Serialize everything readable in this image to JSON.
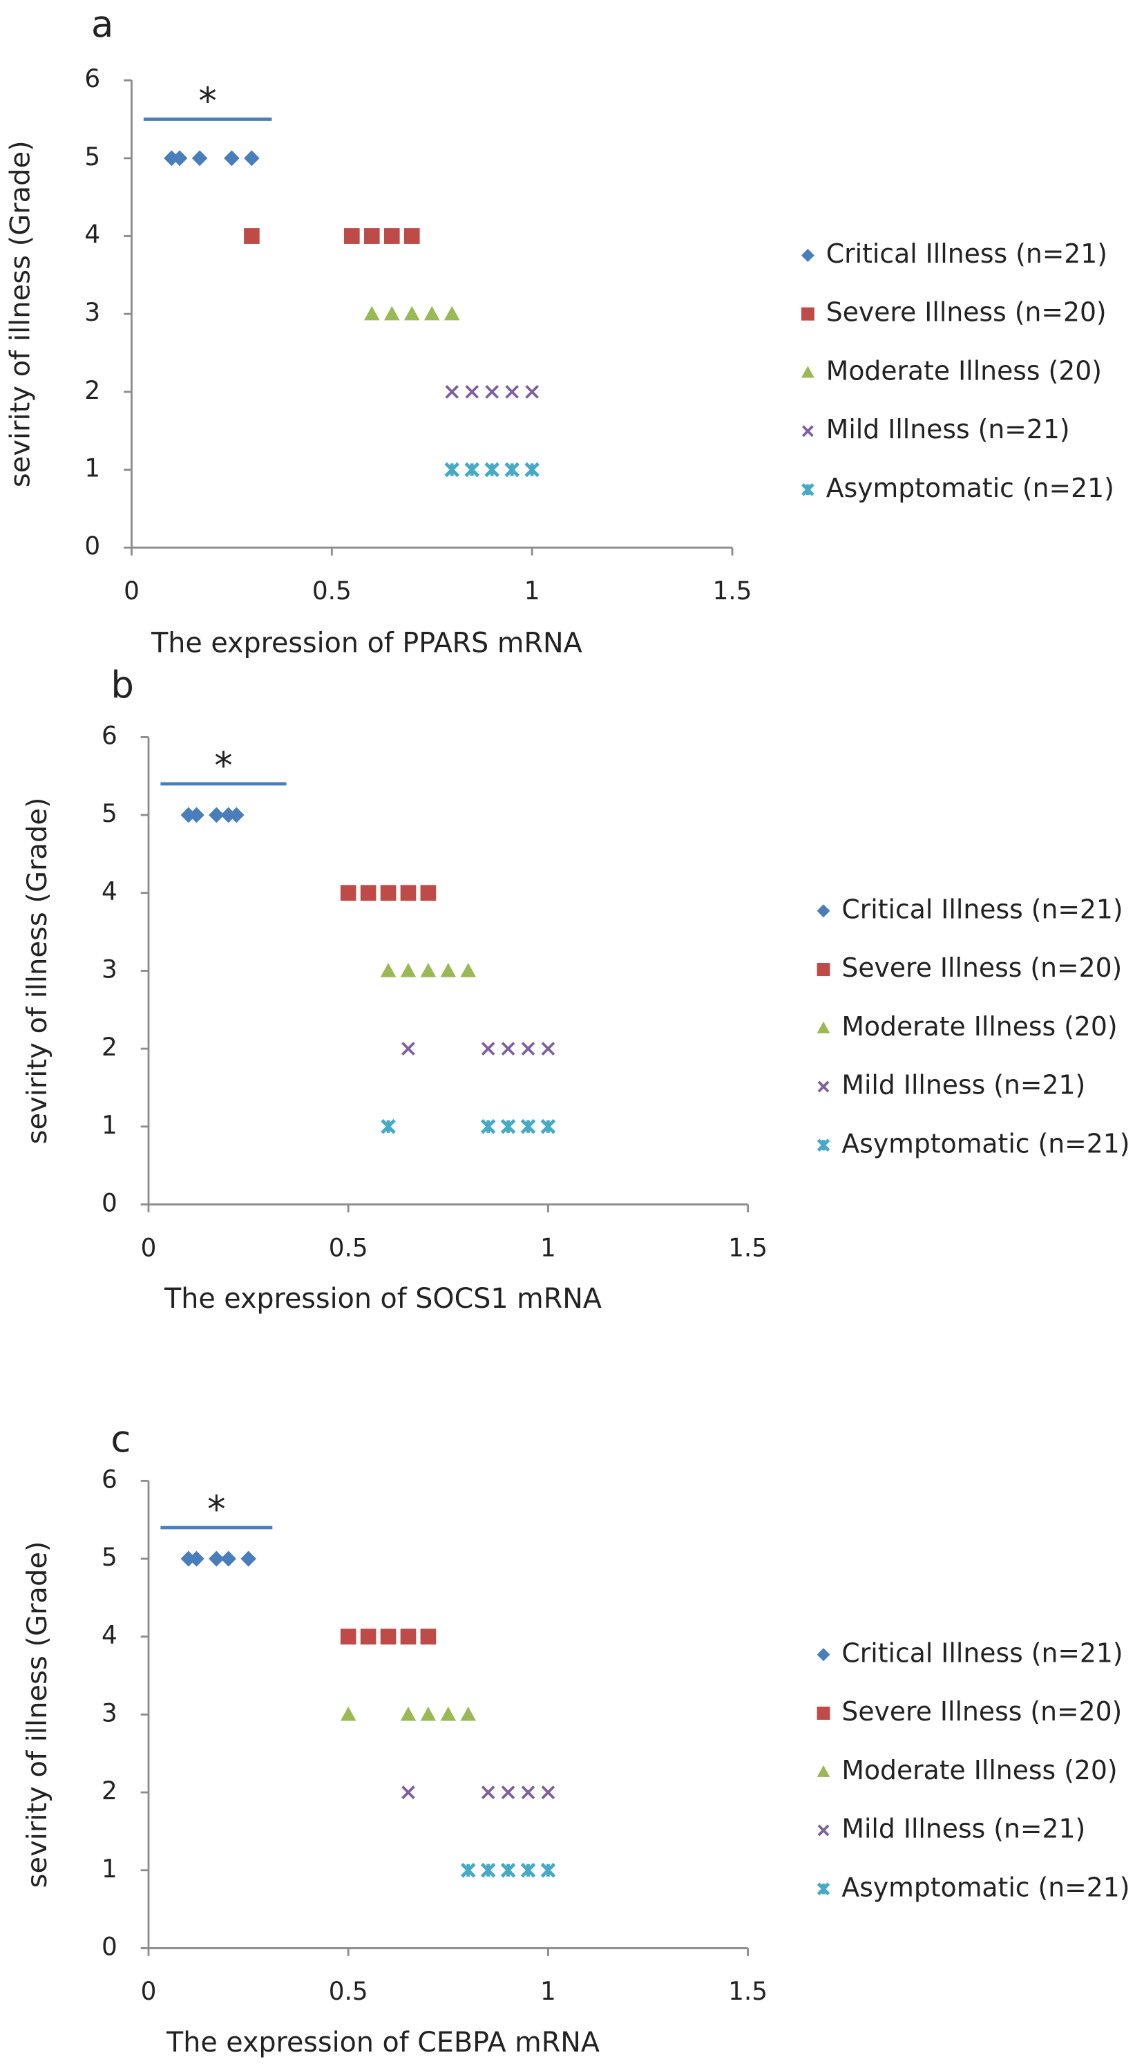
{
  "chart_data": [
    {
      "type": "scatter",
      "panel_label": "a",
      "x_label": "The expression of PPARS mRNA",
      "y_label": "sevirity of illness (Grade)",
      "xlim": [
        0,
        1.5
      ],
      "ylim": [
        0,
        6
      ],
      "xticks": [
        0,
        0.5,
        1,
        1.5
      ],
      "yticks": [
        0,
        1,
        2,
        3,
        4,
        5,
        6
      ],
      "significance": {
        "label": "*",
        "y": 5.5,
        "x": [
          0.03,
          0.35
        ]
      },
      "series": [
        {
          "name": "Critical Illness (n=21)",
          "color": "#4a7ebb",
          "marker": "diamond",
          "x": [
            0.1,
            0.12,
            0.17,
            0.25,
            0.3
          ],
          "values": [
            5,
            5,
            5,
            5,
            5
          ]
        },
        {
          "name": "Severe Illness (n=20)",
          "color": "#be4b48",
          "marker": "square",
          "x": [
            0.3,
            0.55,
            0.6,
            0.65,
            0.7
          ],
          "values": [
            4,
            4,
            4,
            4,
            4
          ]
        },
        {
          "name": "Moderate Illness (20)",
          "color": "#98b954",
          "marker": "triangle",
          "x": [
            0.6,
            0.65,
            0.7,
            0.75,
            0.8
          ],
          "values": [
            3,
            3,
            3,
            3,
            3
          ]
        },
        {
          "name": "Mild Illness (n=21)",
          "color": "#7d60a0",
          "marker": "x",
          "x": [
            0.8,
            0.85,
            0.9,
            0.95,
            1.0
          ],
          "values": [
            2,
            2,
            2,
            2,
            2
          ]
        },
        {
          "name": "Asymptomatic (n=21)",
          "color": "#46aac5",
          "marker": "star",
          "x": [
            0.8,
            0.85,
            0.9,
            0.95,
            1.0
          ],
          "values": [
            1,
            1,
            1,
            1,
            1
          ]
        }
      ]
    },
    {
      "type": "scatter",
      "panel_label": "b",
      "x_label": "The expression of SOCS1  mRNA",
      "y_label": "sevirity of illness (Grade)",
      "xlim": [
        0,
        1.5
      ],
      "ylim": [
        0,
        6
      ],
      "xticks": [
        0,
        0.5,
        1,
        1.5
      ],
      "yticks": [
        0,
        1,
        2,
        3,
        4,
        5,
        6
      ],
      "significance": {
        "label": "*",
        "y": 5.4,
        "x": [
          0.03,
          0.345
        ]
      },
      "series": [
        {
          "name": "Critical Illness (n=21)",
          "color": "#4a7ebb",
          "marker": "diamond",
          "x": [
            0.1,
            0.12,
            0.17,
            0.2,
            0.22
          ],
          "values": [
            5,
            5,
            5,
            5,
            5
          ]
        },
        {
          "name": "Severe Illness (n=20)",
          "color": "#be4b48",
          "marker": "square",
          "x": [
            0.5,
            0.55,
            0.6,
            0.65,
            0.7
          ],
          "values": [
            4,
            4,
            4,
            4,
            4
          ]
        },
        {
          "name": "Moderate Illness (20)",
          "color": "#98b954",
          "marker": "triangle",
          "x": [
            0.6,
            0.65,
            0.7,
            0.75,
            0.8
          ],
          "values": [
            3,
            3,
            3,
            3,
            3
          ]
        },
        {
          "name": "Mild Illness (n=21)",
          "color": "#7d60a0",
          "marker": "x",
          "x": [
            0.65,
            0.85,
            0.9,
            0.95,
            1.0
          ],
          "values": [
            2,
            2,
            2,
            2,
            2
          ]
        },
        {
          "name": "Asymptomatic (n=21)",
          "color": "#46aac5",
          "marker": "star",
          "x": [
            0.6,
            0.85,
            0.9,
            0.95,
            1.0
          ],
          "values": [
            1,
            1,
            1,
            1,
            1
          ]
        }
      ]
    },
    {
      "type": "scatter",
      "panel_label": "c",
      "x_label": "The expression of CEBPA mRNA",
      "y_label": "sevirity of illness (Grade)",
      "xlim": [
        0,
        1.5
      ],
      "ylim": [
        0,
        6
      ],
      "xticks": [
        0,
        0.5,
        1,
        1.5
      ],
      "yticks": [
        0,
        1,
        2,
        3,
        4,
        5,
        6
      ],
      "significance": {
        "label": "*",
        "y": 5.4,
        "x": [
          0.03,
          0.31
        ]
      },
      "series": [
        {
          "name": "Critical Illness (n=21)",
          "color": "#4a7ebb",
          "marker": "diamond",
          "x": [
            0.1,
            0.12,
            0.17,
            0.2,
            0.25
          ],
          "values": [
            5,
            5,
            5,
            5,
            5
          ]
        },
        {
          "name": "Severe Illness (n=20)",
          "color": "#be4b48",
          "marker": "square",
          "x": [
            0.5,
            0.55,
            0.6,
            0.65,
            0.7
          ],
          "values": [
            4,
            4,
            4,
            4,
            4
          ]
        },
        {
          "name": "Moderate Illness (20)",
          "color": "#98b954",
          "marker": "triangle",
          "x": [
            0.5,
            0.65,
            0.7,
            0.75,
            0.8
          ],
          "values": [
            3,
            3,
            3,
            3,
            3
          ]
        },
        {
          "name": "Mild Illness (n=21)",
          "color": "#7d60a0",
          "marker": "x",
          "x": [
            0.65,
            0.85,
            0.9,
            0.95,
            1.0
          ],
          "values": [
            2,
            2,
            2,
            2,
            2
          ]
        },
        {
          "name": "Asymptomatic (n=21)",
          "color": "#46aac5",
          "marker": "star",
          "x": [
            0.8,
            0.85,
            0.9,
            0.95,
            1.0
          ],
          "values": [
            1,
            1,
            1,
            1,
            1
          ]
        }
      ]
    }
  ]
}
